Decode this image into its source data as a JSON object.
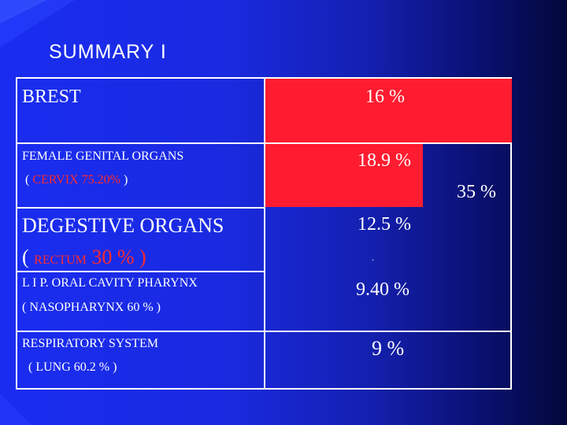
{
  "slide": {
    "title": "SUMMARY I",
    "rows": [
      {
        "label": "BREST",
        "value": "16 %"
      },
      {
        "label": "FEMALE GENITAL ORGANS",
        "sub_open": "( ",
        "sub_red": "CERVIX 75.20%",
        "sub_close": " )",
        "value": "18.9 %"
      },
      {
        "label": "DEGESTIVE ORGANS",
        "sub_open": "( ",
        "sub_red": "RECTUM",
        "sub_rest": " 30 % )",
        "value": "12.5 %"
      },
      {
        "label": "L I P. ORAL CAVITY  PHARYNX",
        "sub": "(  NASOPHARYNX 60 % )",
        "value": "9.40 %"
      },
      {
        "label": "RESPIRATORY SYSTEM",
        "sub": "( LUNG   60.2 % )",
        "value": "9 %"
      }
    ],
    "side_total": "35 %",
    "dot": "."
  },
  "colors": {
    "background": "#1a2cf0",
    "highlight": "#ff1c30",
    "accent_text": "#ff2a2a"
  }
}
